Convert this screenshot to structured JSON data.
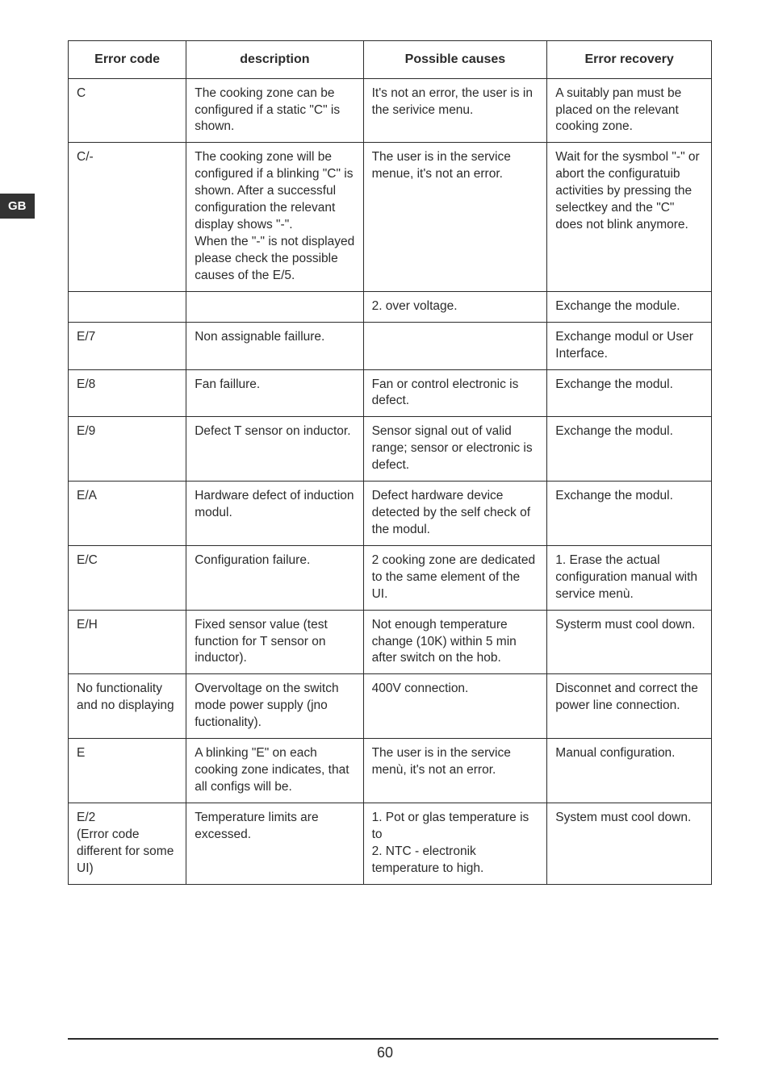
{
  "side_tab": "GB",
  "page_number": "60",
  "table": {
    "headers": {
      "c1": "Error code",
      "c2": "description",
      "c3": "Possible causes",
      "c4": "Error recovery"
    },
    "rows": [
      {
        "c1": "C",
        "c2": "The cooking zone can be configured if a static \"C\" is shown.",
        "c3": "It's not an error, the user is in the serivice menu.",
        "c4": "A suitably pan must be placed on the relevant cooking zone."
      },
      {
        "c1": "C/-",
        "c2": "The cooking zone will be configured if a blinking \"C\" is shown. After a successful configuration the relevant display shows \"-\".\nWhen the \"-\" is not displayed please check the possible causes of the E/5.",
        "c3": "The user is in the service menue, it's not an error.",
        "c4": "Wait for the sysmbol \"-\" or abort the configuratuib activities by pressing the selectkey and the \"C\" does not blink anymore."
      },
      {
        "c1": "",
        "c2": "",
        "c3": "2. over voltage.",
        "c4": "Exchange the module."
      },
      {
        "c1": "E/7",
        "c2": "Non assignable faillure.",
        "c3": "",
        "c4": "Exchange modul or User Interface."
      },
      {
        "c1": "E/8",
        "c2": "Fan faillure.",
        "c3": "Fan or control electronic is defect.",
        "c4": "Exchange the modul."
      },
      {
        "c1": "E/9",
        "c2": "Defect T sensor on inductor.",
        "c3": "Sensor signal out of valid range; sensor or electronic is defect.",
        "c4": "Exchange the modul."
      },
      {
        "c1": "E/A",
        "c2": "Hardware defect of induction modul.",
        "c3": "Defect hardware device detected by the self check of the modul.",
        "c4": "Exchange the modul."
      },
      {
        "c1": "E/C",
        "c2": "Configuration failure.",
        "c3": "2 cooking zone are dedicated to the same element of the UI.",
        "c4": "1. Erase the actual configuration manual with service menù."
      },
      {
        "c1": "E/H",
        "c2": "Fixed sensor value (test function for T sensor on inductor).",
        "c3": "Not enough temperature change (10K) within 5 min after switch on the hob.",
        "c4": "Systerm must cool down."
      },
      {
        "c1": "No functionality and no displaying",
        "c2": "Overvoltage on the switch mode power supply (jno fuctionality).",
        "c3": "400V connection.",
        "c4": "Disconnet and correct the power line connection."
      },
      {
        "c1": "E",
        "c2": "A blinking \"E\" on each cooking zone indicates, that all configs will be.",
        "c3": "The user is in the service menù, it's not an error.",
        "c4": "Manual configuration."
      },
      {
        "c1": "E/2\n(Error code different for some UI)",
        "c2": "Temperature limits are excessed.",
        "c3": "1. Pot or glas temperature is to\n2. NTC - electronik temperature to high.",
        "c4": "System must cool down."
      }
    ]
  }
}
